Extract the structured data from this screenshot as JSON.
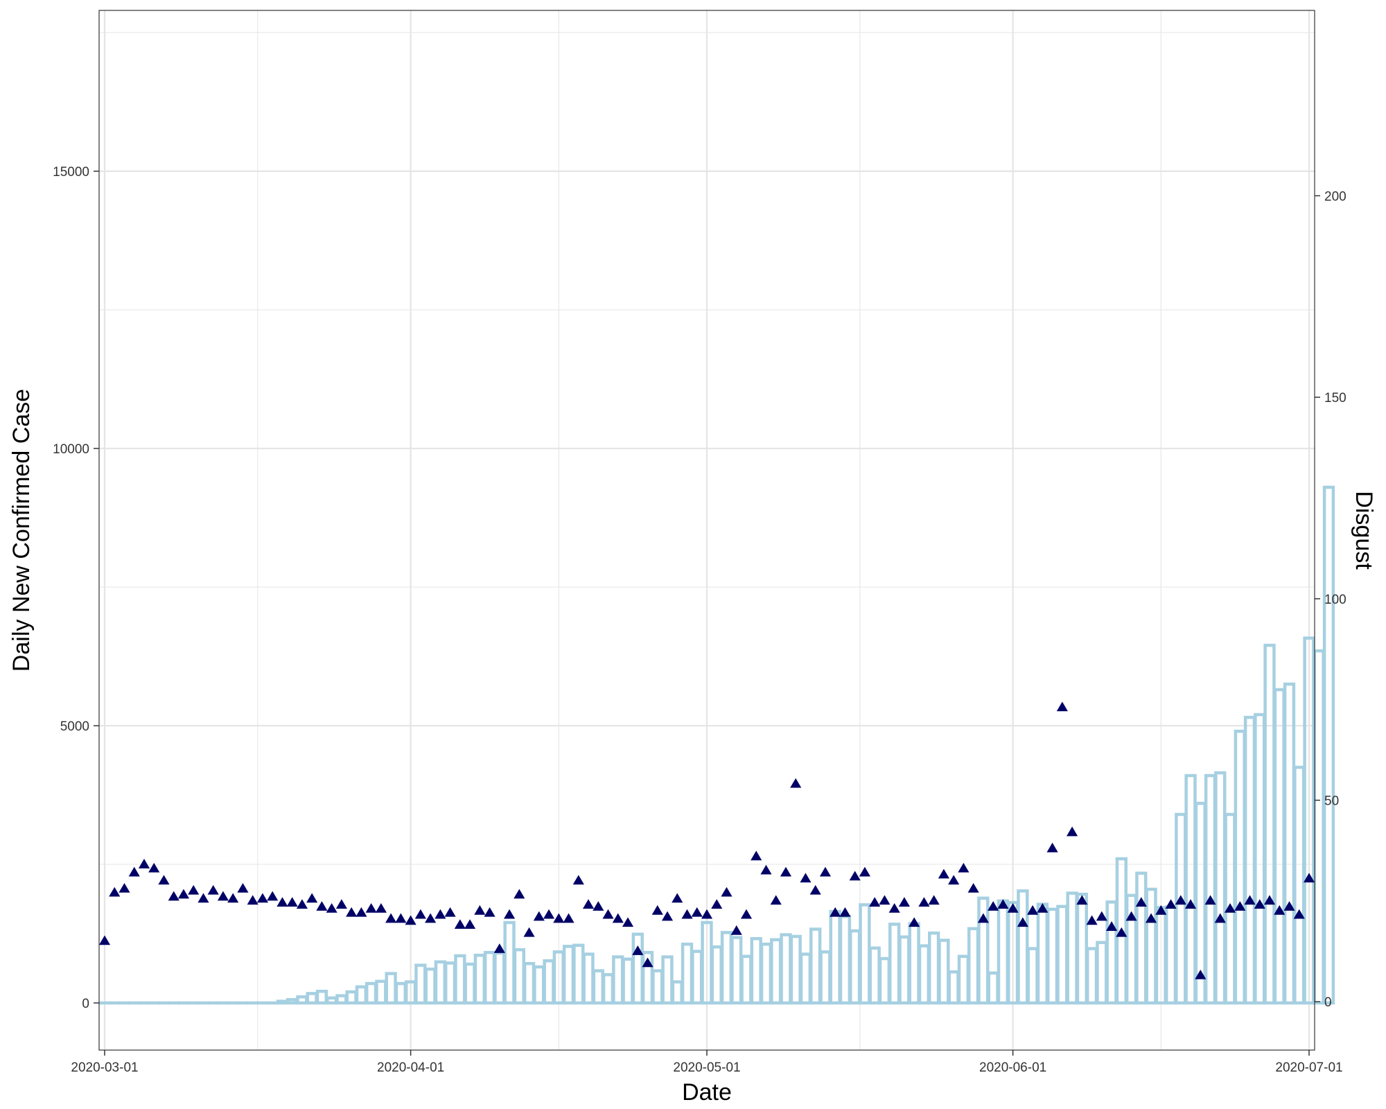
{
  "chart_data": {
    "type": "bar",
    "xlabel": "Date",
    "ylabel": "Daily New Confirmed Case",
    "y2label": "Disgust",
    "x_ticks": [
      "2020-03-01",
      "2020-04-01",
      "2020-05-01",
      "2020-06-01",
      "2020-07-01"
    ],
    "x_range": [
      "2020-03-01",
      "2020-07-01"
    ],
    "y_ticks": [
      0,
      5000,
      10000,
      15000
    ],
    "ylim": [
      -850,
      17900
    ],
    "y2_ticks": [
      0,
      50,
      100,
      150,
      200
    ],
    "y2lim": [
      -12,
      246
    ],
    "grid": true,
    "colors": {
      "bars": "#a6d0e1",
      "points": "#000066",
      "grid": "#e5e5e5",
      "border": "#333333"
    },
    "series": [
      {
        "type": "bar",
        "axis": "left",
        "values": [
          0,
          0,
          0,
          0,
          0,
          0,
          0,
          0,
          0,
          0,
          0,
          0,
          0,
          0,
          0,
          0,
          0,
          0,
          30,
          60,
          110,
          170,
          210,
          90,
          130,
          200,
          290,
          350,
          390,
          530,
          350,
          380,
          680,
          610,
          740,
          720,
          850,
          700,
          860,
          910,
          900,
          1450,
          960,
          710,
          650,
          760,
          920,
          1020,
          1040,
          880,
          580,
          510,
          830,
          790,
          1240,
          910,
          580,
          830,
          380,
          1060,
          930,
          1450,
          1010,
          1270,
          1180,
          840,
          1160,
          1060,
          1140,
          1230,
          1200,
          880,
          1330,
          920,
          1650,
          1560,
          1300,
          1770,
          990,
          800,
          1420,
          1190,
          1430,
          1030,
          1260,
          1130,
          560,
          840,
          1340,
          1890,
          540,
          1840,
          1810,
          2020,
          980,
          1780,
          1690,
          1740,
          1980,
          1960,
          980,
          1090,
          1820,
          2600,
          1940,
          2340,
          2050,
          1720,
          1730,
          3400,
          4100,
          3600,
          4100,
          4150,
          3400,
          4900,
          5150,
          5200,
          6450,
          5650,
          5750,
          4250,
          6580,
          6350,
          9300
        ]
      },
      {
        "type": "scatter",
        "axis": "right",
        "marker": "triangle",
        "values": [
          15,
          27,
          28,
          32,
          34,
          33,
          30,
          26,
          26.5,
          27.5,
          25.5,
          27.5,
          26,
          25.5,
          28,
          25,
          25.5,
          26,
          24.5,
          24.5,
          24,
          25.5,
          23.5,
          23,
          24,
          22,
          22,
          23,
          23,
          20.5,
          20.5,
          20,
          21.5,
          20.5,
          21.5,
          22,
          19,
          19,
          22.5,
          22,
          13,
          21.5,
          26.5,
          17,
          21,
          21.5,
          20.5,
          20.5,
          30,
          24,
          23.5,
          21.5,
          20.5,
          19.5,
          12.5,
          9.5,
          22.5,
          21,
          25.5,
          21.5,
          22,
          21.5,
          24,
          27,
          17.5,
          21.5,
          36,
          32.5,
          25,
          32,
          54,
          30.5,
          27.5,
          32,
          22,
          22,
          31,
          32,
          24.5,
          25,
          23,
          24.5,
          19.5,
          24.5,
          25,
          31.5,
          30,
          33,
          28,
          20.5,
          23.5,
          24,
          23,
          19.5,
          22.5,
          23,
          38,
          73,
          42,
          25,
          20,
          21,
          18.5,
          17,
          21,
          24.5,
          20.5,
          22.5,
          24,
          25,
          24,
          6.5,
          25,
          20.5,
          23,
          23.5,
          25,
          24,
          25,
          22.5,
          23.5,
          21.5,
          30.5
        ]
      }
    ]
  }
}
